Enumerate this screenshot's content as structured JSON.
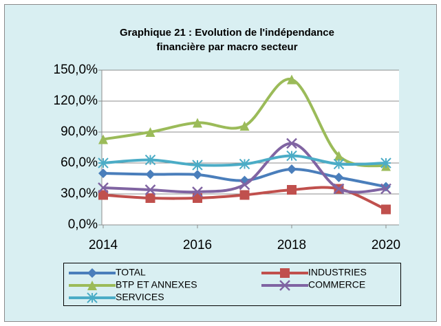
{
  "chart_data": {
    "type": "line",
    "title": "Graphique 21 : Evolution de l'indépendance",
    "subtitle": "financière par macro secteur",
    "x": [
      2014,
      2015,
      2016,
      2017,
      2018,
      2019,
      2020
    ],
    "xlim": [
      2014,
      2020
    ],
    "xticks": [
      2014,
      2016,
      2018,
      2020
    ],
    "ylim": [
      0,
      150
    ],
    "yticks": [
      {
        "value": 0,
        "label": "0,0%"
      },
      {
        "value": 30,
        "label": "30,0%"
      },
      {
        "value": 60,
        "label": "60,0%"
      },
      {
        "value": 90,
        "label": "90,0%"
      },
      {
        "value": 120,
        "label": "120,0%"
      },
      {
        "value": 150,
        "label": "150,0%"
      }
    ],
    "grid": true,
    "smooth": true,
    "legend": "bottom",
    "series": [
      {
        "name": "TOTAL",
        "color": "#4a7ebb",
        "marker": "diamond",
        "values": [
          50,
          49,
          48.7,
          43,
          54,
          46,
          37
        ]
      },
      {
        "name": "INDUSTRIES",
        "color": "#c0504d",
        "marker": "square",
        "values": [
          29,
          26,
          26,
          29,
          34,
          35,
          15
        ]
      },
      {
        "name": "BTP ET ANNEXES",
        "color": "#9bbb59",
        "marker": "triangle",
        "values": [
          83,
          90,
          99,
          96,
          141,
          67,
          57
        ]
      },
      {
        "name": "COMMERCE",
        "color": "#8064a2",
        "marker": "x",
        "values": [
          36,
          34,
          32,
          39,
          79,
          35,
          35
        ]
      },
      {
        "name": "SERVICES",
        "color": "#4bacc6",
        "marker": "asterisk",
        "values": [
          60,
          63,
          58,
          59,
          67,
          59,
          60
        ]
      }
    ]
  }
}
